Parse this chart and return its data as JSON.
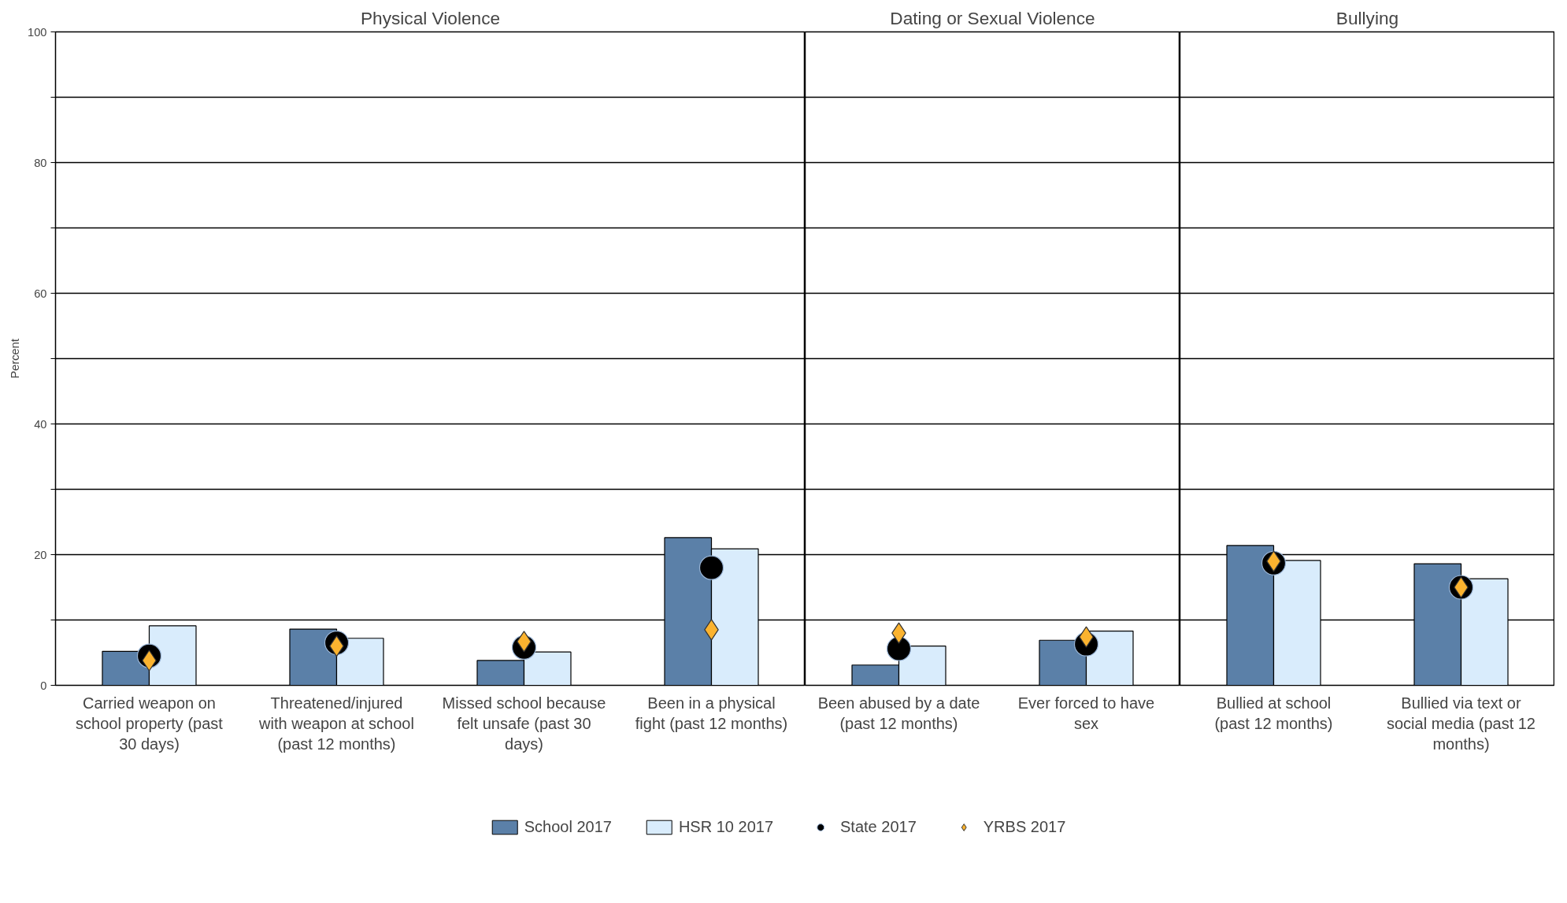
{
  "chart_data": [
    {
      "type": "bar",
      "title": "Physical Violence",
      "ylabel": "Percent",
      "categories": [
        "Carried weapon on school property (past 30 days)",
        "Threatened/injured with weapon at school (past 12 months)",
        "Missed school because felt unsafe (past 30 days)",
        "Been in a physical fight (past 12 months)"
      ],
      "series": [
        {
          "name": "School 2017",
          "color": "#5b80a8",
          "values": [
            5.2,
            8.6,
            3.8,
            22.6
          ]
        },
        {
          "name": "HSR 10 2017",
          "color": "#d9ecfc",
          "values": [
            9.1,
            7.2,
            5.1,
            20.9
          ]
        },
        {
          "name": "State 2017",
          "type": "scatter",
          "marker": "circle",
          "color": "#000000",
          "values": [
            4.5,
            6.5,
            5.8,
            18.0
          ]
        },
        {
          "name": "YRBS 2017",
          "type": "scatter",
          "marker": "diamond",
          "color": "#fbb32f",
          "values": [
            3.8,
            6.0,
            6.7,
            8.5
          ]
        }
      ],
      "ylim": [
        0,
        100
      ],
      "yticks": [
        0,
        {
          "value": 10,
          "label": null
        },
        20,
        {
          "value": 30,
          "label": null
        },
        40,
        {
          "value": 50,
          "label": null
        },
        60,
        {
          "value": 70,
          "label": null
        },
        80,
        {
          "value": 90,
          "label": null
        },
        100
      ],
      "grid": "y",
      "legend": "bottom"
    },
    {
      "type": "bar",
      "title": "Dating or Sexual Violence",
      "categories": [
        "Been abused by a date (past 12 months)",
        "Ever forced to have sex"
      ],
      "series": [
        {
          "color": "#5b80a8",
          "values": [
            3.1,
            6.9
          ]
        },
        {
          "color": "#d9ecfc",
          "values": [
            6.0,
            8.3
          ]
        },
        {
          "type": "scatter",
          "marker": "circle",
          "color": "#000000",
          "values": [
            5.6,
            6.3
          ]
        },
        {
          "type": "scatter",
          "marker": "diamond",
          "color": "#fbb32f",
          "values": [
            8.0,
            7.4
          ]
        }
      ],
      "ylim": [
        0,
        100
      ],
      "yticks": [
        0,
        {
          "value": 10,
          "label": null
        },
        20,
        {
          "value": 30,
          "label": null
        },
        40,
        {
          "value": 50,
          "label": null
        },
        60,
        {
          "value": 70,
          "label": null
        },
        80,
        {
          "value": 90,
          "label": null
        },
        100
      ],
      "grid": "y",
      "tick_labels": "x"
    },
    {
      "type": "bar",
      "title": "Bullying",
      "categories": [
        "Bullied at school (past 12 months)",
        "Bullied via text or social media (past 12 months)"
      ],
      "series": [
        {
          "color": "#5b80a8",
          "values": [
            21.4,
            18.6
          ]
        },
        {
          "color": "#d9ecfc",
          "values": [
            19.1,
            16.3
          ]
        },
        {
          "type": "scatter",
          "marker": "circle",
          "color": "#000000",
          "values": [
            18.7,
            15.0
          ]
        },
        {
          "type": "scatter",
          "marker": "diamond",
          "color": "#fbb32f",
          "values": [
            19.0,
            15.0
          ]
        }
      ],
      "ylim": [
        0,
        100
      ],
      "yticks": [
        0,
        {
          "value": 10,
          "label": null
        },
        20,
        {
          "value": 30,
          "label": null
        },
        40,
        {
          "value": 50,
          "label": null
        },
        60,
        {
          "value": 70,
          "label": null
        },
        80,
        {
          "value": 90,
          "label": null
        },
        100
      ],
      "grid": "y",
      "tick_labels": "x"
    }
  ]
}
